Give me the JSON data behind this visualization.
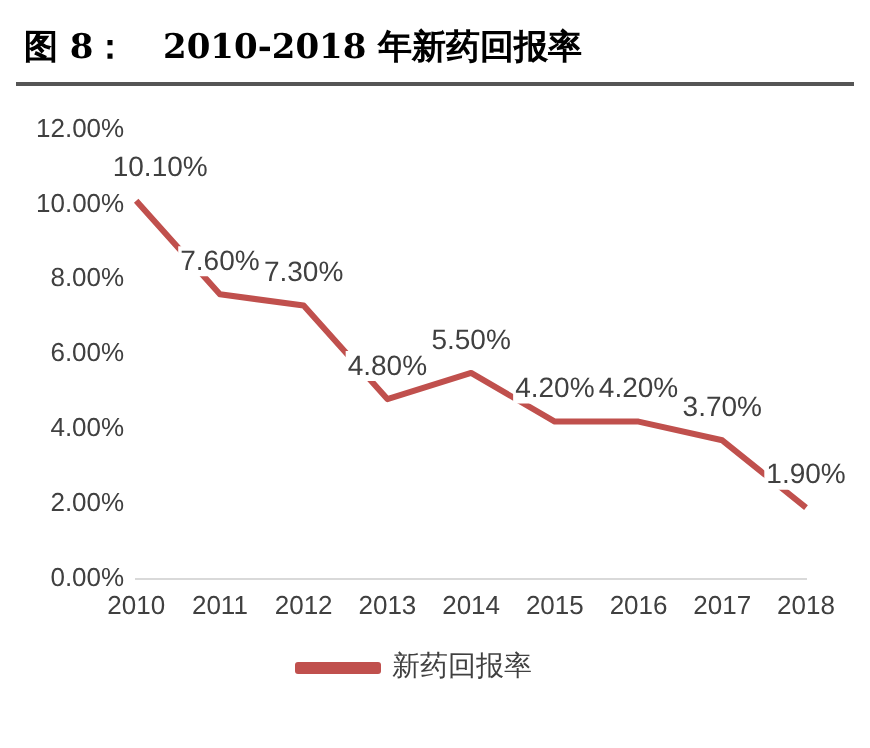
{
  "chart_data": {
    "type": "line",
    "title": "图 8：   2010-2018 年新药回报率",
    "categories": [
      "2010",
      "2011",
      "2012",
      "2013",
      "2014",
      "2015",
      "2016",
      "2017",
      "2018"
    ],
    "series": [
      {
        "name": "新药回报率",
        "color": "#c0504d",
        "values": [
          10.1,
          7.6,
          7.3,
          4.8,
          5.5,
          4.2,
          4.2,
          3.7,
          1.9
        ],
        "value_labels": [
          "10.10%",
          "7.60%",
          "7.30%",
          "4.80%",
          "5.50%",
          "4.20%",
          "4.20%",
          "3.70%",
          "1.90%"
        ]
      }
    ],
    "ylim": [
      0,
      12
    ],
    "yticks": [
      {
        "value": 0,
        "label": "0.00%"
      },
      {
        "value": 2,
        "label": "2.00%"
      },
      {
        "value": 4,
        "label": "4.00%"
      },
      {
        "value": 6,
        "label": "6.00%"
      },
      {
        "value": 8,
        "label": "8.00%"
      },
      {
        "value": 10,
        "label": "10.00%"
      },
      {
        "value": 12,
        "label": "12.00%"
      }
    ],
    "grid": false,
    "legend": "bottom",
    "marker": "none",
    "line_style": "solid"
  }
}
